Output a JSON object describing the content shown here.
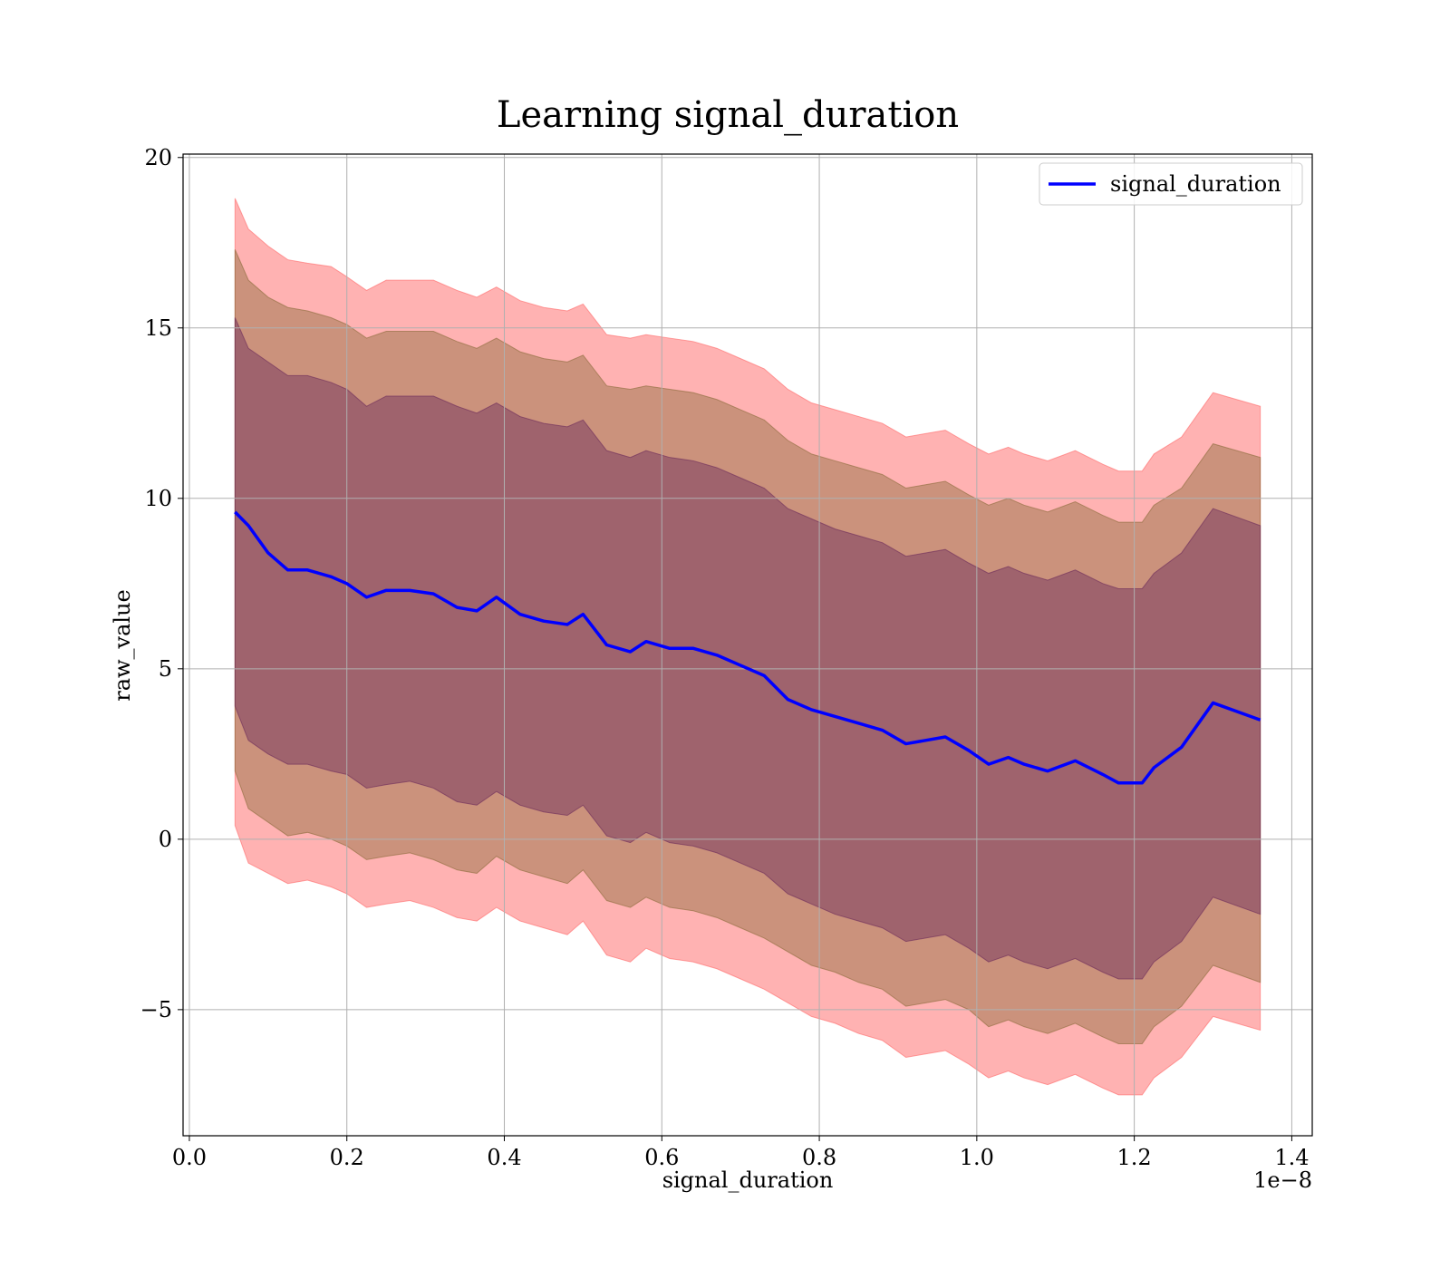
{
  "chart_data": {
    "type": "line",
    "title": "Learning signal_duration",
    "xlabel": "signal_duration",
    "ylabel": "raw_value",
    "x_offset_text": "1e−8",
    "xlim": [
      -0.008,
      1.426
    ],
    "ylim": [
      -8.7,
      20.1
    ],
    "xticks": [
      0.0,
      0.2,
      0.4,
      0.6,
      0.8,
      1.0,
      1.2,
      1.4
    ],
    "xtick_labels": [
      "0.0",
      "0.2",
      "0.4",
      "0.6",
      "0.8",
      "1.0",
      "1.2",
      "1.4"
    ],
    "yticks": [
      -5,
      0,
      5,
      10,
      15,
      20
    ],
    "ytick_labels": [
      "−5",
      "0",
      "5",
      "10",
      "15",
      "20"
    ],
    "grid": true,
    "legend_position": "top-right",
    "colors": {
      "line": "#0000ff",
      "band_outer": "#ff6666",
      "band_middle": "#8b6b3a",
      "band_inner": "#6b2a5a"
    },
    "x": [
      0.058,
      0.075,
      0.1,
      0.125,
      0.15,
      0.18,
      0.2,
      0.225,
      0.25,
      0.28,
      0.31,
      0.34,
      0.365,
      0.39,
      0.42,
      0.45,
      0.48,
      0.5,
      0.53,
      0.56,
      0.58,
      0.61,
      0.64,
      0.67,
      0.7,
      0.73,
      0.76,
      0.79,
      0.82,
      0.85,
      0.88,
      0.91,
      0.935,
      0.96,
      0.99,
      1.015,
      1.04,
      1.06,
      1.09,
      1.125,
      1.16,
      1.18,
      1.21,
      1.225,
      1.26,
      1.3,
      1.36
    ],
    "series": [
      {
        "name": "signal_duration",
        "values": [
          9.6,
          9.2,
          8.4,
          7.9,
          7.9,
          7.7,
          7.5,
          7.1,
          7.3,
          7.3,
          7.2,
          6.8,
          6.7,
          7.1,
          6.6,
          6.4,
          6.3,
          6.6,
          5.7,
          5.5,
          5.8,
          5.6,
          5.6,
          5.4,
          5.1,
          4.8,
          4.1,
          3.8,
          3.6,
          3.4,
          3.2,
          2.8,
          2.9,
          3.0,
          2.6,
          2.2,
          2.4,
          2.2,
          2.0,
          2.3,
          1.9,
          1.65,
          1.65,
          2.1,
          2.7,
          4.0,
          3.5
        ]
      }
    ],
    "bands": [
      {
        "lower": [
          0.4,
          -0.7,
          -1.0,
          -1.3,
          -1.2,
          -1.4,
          -1.6,
          -2.0,
          -1.9,
          -1.8,
          -2.0,
          -2.3,
          -2.4,
          -2.0,
          -2.4,
          -2.6,
          -2.8,
          -2.4,
          -3.4,
          -3.6,
          -3.2,
          -3.5,
          -3.6,
          -3.8,
          -4.1,
          -4.4,
          -4.8,
          -5.2,
          -5.4,
          -5.7,
          -5.9,
          -6.4,
          -6.3,
          -6.2,
          -6.6,
          -7.0,
          -6.8,
          -7.0,
          -7.2,
          -6.9,
          -7.3,
          -7.5,
          -7.5,
          -7.0,
          -6.4,
          -5.2,
          -5.6
        ],
        "upper": [
          18.8,
          17.9,
          17.4,
          17.0,
          16.9,
          16.8,
          16.5,
          16.1,
          16.4,
          16.4,
          16.4,
          16.1,
          15.9,
          16.2,
          15.8,
          15.6,
          15.5,
          15.7,
          14.8,
          14.7,
          14.8,
          14.7,
          14.6,
          14.4,
          14.1,
          13.8,
          13.2,
          12.8,
          12.6,
          12.4,
          12.2,
          11.8,
          11.9,
          12.0,
          11.6,
          11.3,
          11.5,
          11.3,
          11.1,
          11.4,
          11.0,
          10.8,
          10.8,
          11.3,
          11.8,
          13.1,
          12.7
        ]
      },
      {
        "lower": [
          2.0,
          0.9,
          0.5,
          0.1,
          0.2,
          0.0,
          -0.2,
          -0.6,
          -0.5,
          -0.4,
          -0.6,
          -0.9,
          -1.0,
          -0.5,
          -0.9,
          -1.1,
          -1.3,
          -0.9,
          -1.8,
          -2.0,
          -1.7,
          -2.0,
          -2.1,
          -2.3,
          -2.6,
          -2.9,
          -3.3,
          -3.7,
          -3.9,
          -4.2,
          -4.4,
          -4.9,
          -4.8,
          -4.7,
          -5.0,
          -5.5,
          -5.3,
          -5.5,
          -5.7,
          -5.4,
          -5.8,
          -6.0,
          -6.0,
          -5.5,
          -4.9,
          -3.7,
          -4.2
        ],
        "upper": [
          17.3,
          16.4,
          15.9,
          15.6,
          15.5,
          15.3,
          15.1,
          14.7,
          14.9,
          14.9,
          14.9,
          14.6,
          14.4,
          14.7,
          14.3,
          14.1,
          14.0,
          14.2,
          13.3,
          13.2,
          13.3,
          13.2,
          13.1,
          12.9,
          12.6,
          12.3,
          11.7,
          11.3,
          11.1,
          10.9,
          10.7,
          10.3,
          10.4,
          10.5,
          10.1,
          9.8,
          10.0,
          9.8,
          9.6,
          9.9,
          9.5,
          9.3,
          9.3,
          9.8,
          10.3,
          11.6,
          11.2
        ]
      },
      {
        "lower": [
          3.9,
          2.9,
          2.5,
          2.2,
          2.2,
          2.0,
          1.9,
          1.5,
          1.6,
          1.7,
          1.5,
          1.1,
          1.0,
          1.4,
          1.0,
          0.8,
          0.7,
          1.0,
          0.1,
          -0.1,
          0.2,
          -0.1,
          -0.2,
          -0.4,
          -0.7,
          -1.0,
          -1.6,
          -1.9,
          -2.2,
          -2.4,
          -2.6,
          -3.0,
          -2.9,
          -2.8,
          -3.2,
          -3.6,
          -3.4,
          -3.6,
          -3.8,
          -3.5,
          -3.9,
          -4.1,
          -4.1,
          -3.6,
          -3.0,
          -1.7,
          -2.2
        ],
        "upper": [
          15.3,
          14.4,
          14.0,
          13.6,
          13.6,
          13.4,
          13.2,
          12.7,
          13.0,
          13.0,
          13.0,
          12.7,
          12.5,
          12.8,
          12.4,
          12.2,
          12.1,
          12.3,
          11.4,
          11.2,
          11.4,
          11.2,
          11.1,
          10.9,
          10.6,
          10.3,
          9.7,
          9.4,
          9.1,
          8.9,
          8.7,
          8.3,
          8.4,
          8.5,
          8.1,
          7.8,
          8.0,
          7.8,
          7.6,
          7.9,
          7.5,
          7.35,
          7.35,
          7.8,
          8.4,
          9.7,
          9.2
        ]
      }
    ]
  }
}
